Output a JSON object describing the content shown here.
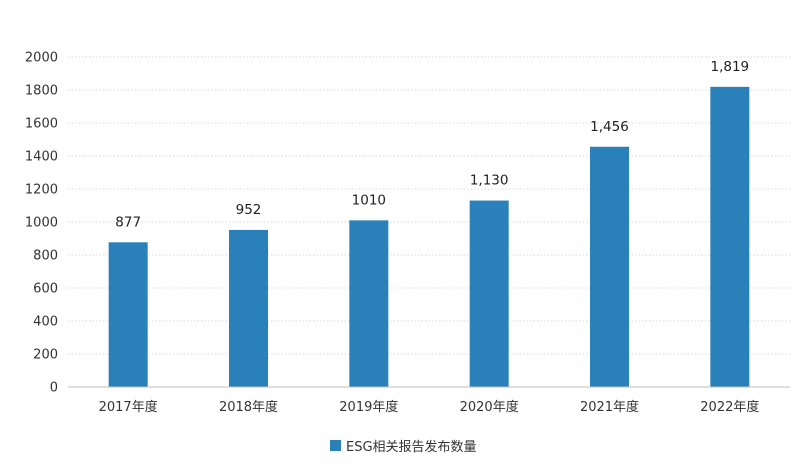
{
  "chart_data": {
    "type": "bar",
    "categories": [
      "2017年度",
      "2018年度",
      "2019年度",
      "2020年度",
      "2021年度",
      "2022年度"
    ],
    "series": [
      {
        "name": "ESG相关报告发布数量",
        "values": [
          877,
          952,
          1010,
          1130,
          1456,
          1819
        ],
        "labels": [
          "877",
          "952",
          "1010",
          "1,130",
          "1,456",
          "1,819"
        ]
      }
    ],
    "ylim": [
      0,
      2000
    ],
    "yticks": [
      0,
      200,
      400,
      600,
      800,
      1000,
      1200,
      1400,
      1600,
      1800,
      2000
    ],
    "grid": true,
    "legend_position": "bottom",
    "bar_color": "#2a80b9",
    "grid_color": "#d9d9d9",
    "axis_color": "#bfbfbf"
  }
}
